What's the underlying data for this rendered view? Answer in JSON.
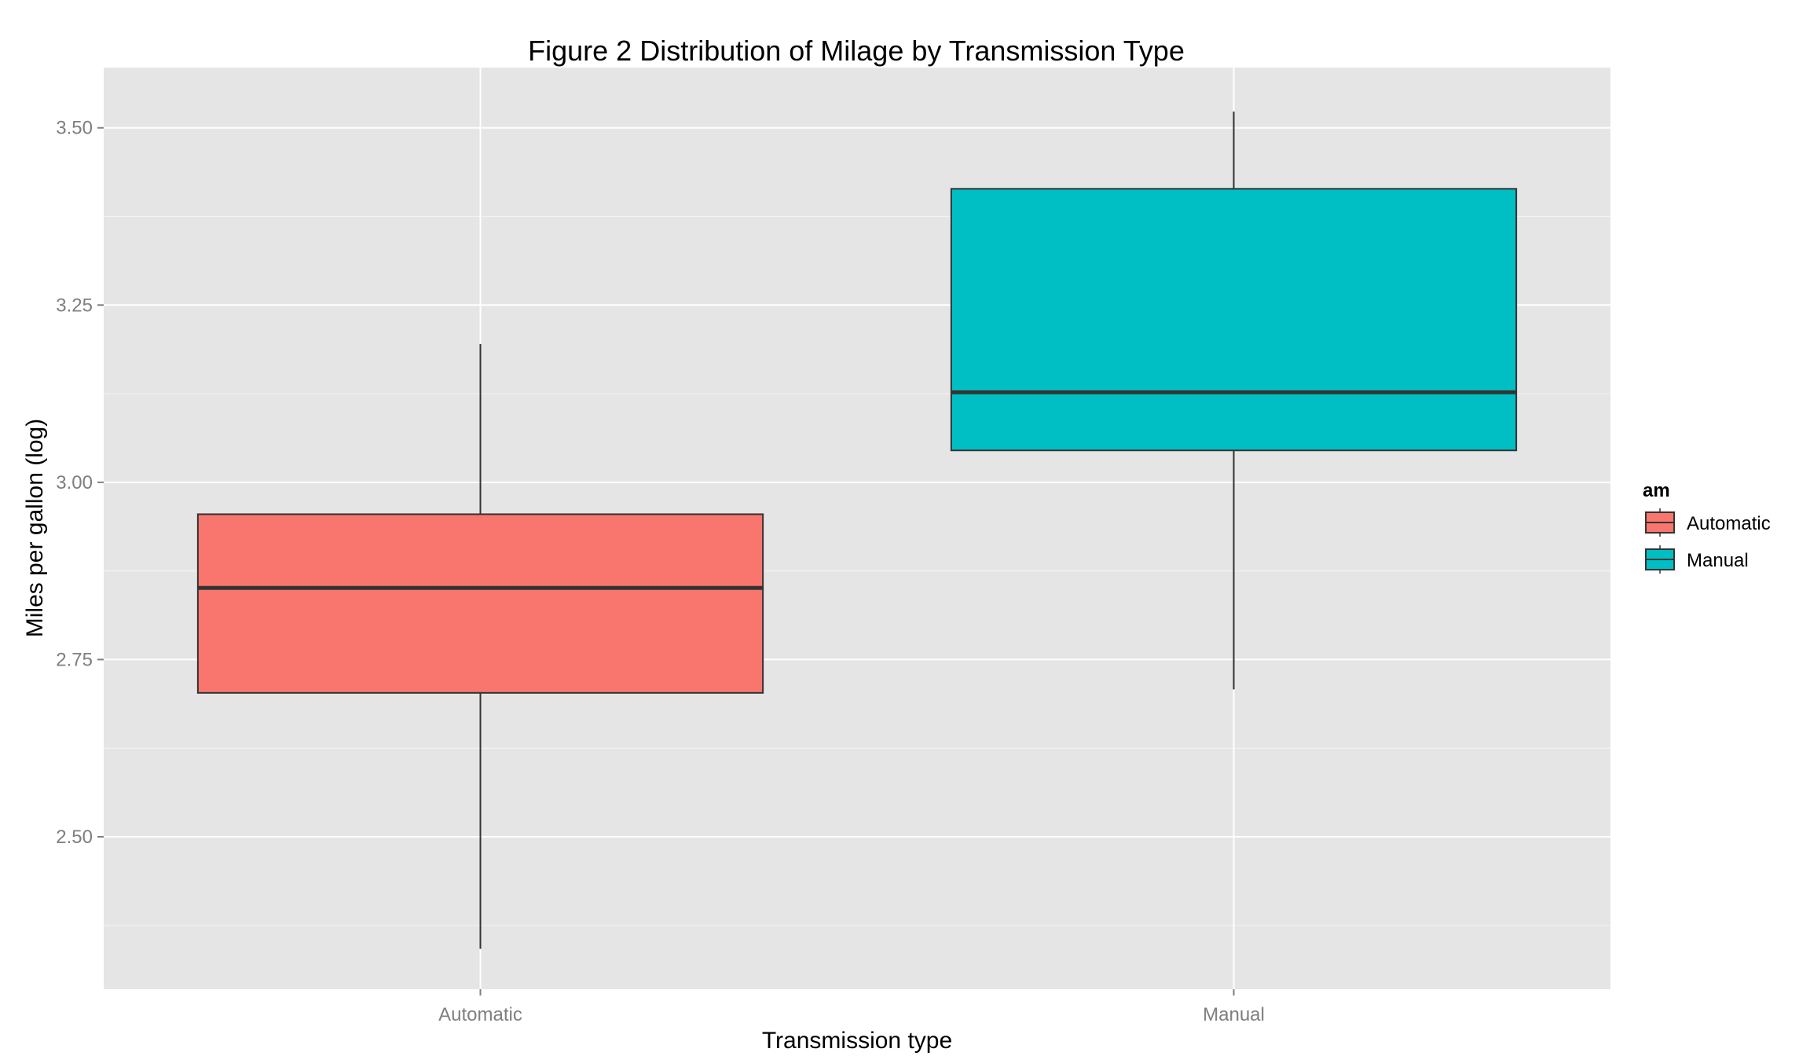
{
  "chart_data": {
    "type": "box",
    "title": "Figure 2  Distribution of Milage by Transmission Type",
    "xlabel": "Transmission type",
    "ylabel": "Miles per gallon (log)",
    "categories": [
      "Automatic",
      "Manual"
    ],
    "ylim": [
      2.285,
      3.585
    ],
    "yticks": [
      2.5,
      2.75,
      3.0,
      3.25,
      3.5
    ],
    "ytick_labels": [
      "2.50",
      "2.75",
      "3.00",
      "3.25",
      "3.50"
    ],
    "grid": true,
    "background": "#e5e5e5",
    "series": [
      {
        "name": "Automatic",
        "color": "#f8766d",
        "min": 2.342,
        "q1": 2.703,
        "median": 2.851,
        "q3": 2.955,
        "max": 3.195
      },
      {
        "name": "Manual",
        "color": "#00bfc4",
        "min": 2.708,
        "q1": 3.045,
        "median": 3.127,
        "q3": 3.414,
        "max": 3.523
      }
    ],
    "legend": {
      "title": "am",
      "position": "right",
      "entries": [
        "Automatic",
        "Manual"
      ]
    }
  }
}
